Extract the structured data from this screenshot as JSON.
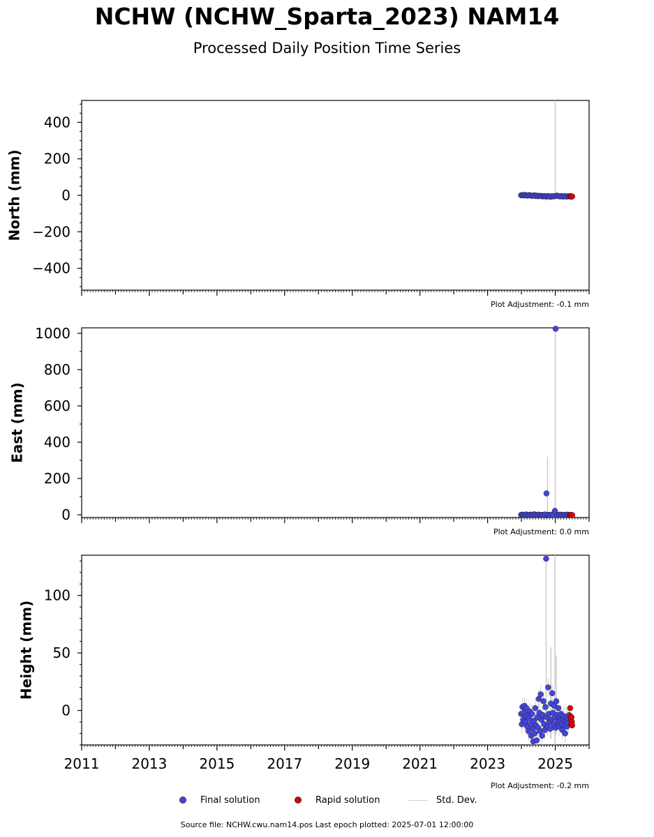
{
  "header": {
    "title": "NCHW (NCHW_Sparta_2023) NAM14",
    "subtitle": "Processed Daily Position Time Series"
  },
  "chart_data": [
    {
      "type": "scatter",
      "ylabel": "North (mm)",
      "xlim": [
        2011,
        2026
      ],
      "ylim": [
        -520,
        520
      ],
      "yticks": [
        -400,
        -200,
        0,
        200,
        400
      ],
      "ytick_labels": [
        "−400",
        "−200",
        "0",
        "200",
        "400"
      ],
      "adjustment": "Plot Adjustment: -0.1 mm",
      "series": [
        {
          "name": "Final solution",
          "color": "#4444dd",
          "points": [
            [
              2023.99,
              0
            ],
            [
              2024.03,
              1
            ],
            [
              2024.07,
              -1
            ],
            [
              2024.1,
              2
            ],
            [
              2024.14,
              0
            ],
            [
              2024.18,
              -2
            ],
            [
              2024.22,
              1
            ],
            [
              2024.26,
              0
            ],
            [
              2024.3,
              -3
            ],
            [
              2024.34,
              -2
            ],
            [
              2024.38,
              0
            ],
            [
              2024.42,
              -4
            ],
            [
              2024.46,
              -2
            ],
            [
              2024.5,
              -5
            ],
            [
              2024.54,
              -3
            ],
            [
              2024.58,
              -4
            ],
            [
              2024.62,
              -6
            ],
            [
              2024.66,
              -4
            ],
            [
              2024.7,
              -5
            ],
            [
              2024.74,
              -7
            ],
            [
              2024.78,
              -4
            ],
            [
              2024.82,
              -6
            ],
            [
              2024.86,
              -8
            ],
            [
              2024.9,
              -5
            ],
            [
              2024.94,
              -6
            ],
            [
              2024.98,
              -5
            ],
            [
              2025.02,
              -3
            ],
            [
              2025.06,
              -2
            ],
            [
              2025.1,
              -5
            ],
            [
              2025.14,
              -6
            ],
            [
              2025.18,
              -4
            ],
            [
              2025.22,
              -7
            ],
            [
              2025.26,
              -5
            ],
            [
              2025.3,
              -6
            ],
            [
              2025.34,
              -7
            ],
            [
              2025.38,
              -5
            ],
            [
              2025.42,
              -6
            ]
          ]
        },
        {
          "name": "Rapid solution",
          "color": "#dd0000",
          "points": [
            [
              2025.44,
              -6
            ],
            [
              2025.46,
              -5
            ],
            [
              2025.48,
              -8
            ],
            [
              2025.5,
              -6
            ]
          ]
        }
      ],
      "error_bars": [
        [
          2025.0,
          520,
          -10
        ],
        [
          2024.7,
          10,
          -30
        ]
      ]
    },
    {
      "type": "scatter",
      "ylabel": "East (mm)",
      "xlim": [
        2011,
        2026
      ],
      "ylim": [
        -15,
        1030
      ],
      "yticks": [
        0,
        200,
        400,
        600,
        800,
        1000
      ],
      "ytick_labels": [
        "0",
        "200",
        "400",
        "600",
        "800",
        "1000"
      ],
      "adjustment": "Plot Adjustment: 0.0 mm",
      "series": [
        {
          "name": "Final solution",
          "color": "#4444dd",
          "points": [
            [
              2023.99,
              0
            ],
            [
              2024.03,
              1
            ],
            [
              2024.07,
              -1
            ],
            [
              2024.1,
              0
            ],
            [
              2024.14,
              2
            ],
            [
              2024.18,
              0
            ],
            [
              2024.22,
              -1
            ],
            [
              2024.26,
              1
            ],
            [
              2024.3,
              0
            ],
            [
              2024.34,
              -2
            ],
            [
              2024.38,
              3
            ],
            [
              2024.42,
              0
            ],
            [
              2024.46,
              -1
            ],
            [
              2024.5,
              1
            ],
            [
              2024.54,
              0
            ],
            [
              2024.58,
              -2
            ],
            [
              2024.62,
              0
            ],
            [
              2024.66,
              -1
            ],
            [
              2024.7,
              2
            ],
            [
              2024.74,
              118
            ],
            [
              2024.78,
              0
            ],
            [
              2024.82,
              -2
            ],
            [
              2024.86,
              0
            ],
            [
              2024.9,
              1
            ],
            [
              2024.94,
              -1
            ],
            [
              2024.99,
              22
            ],
            [
              2025.01,
              1025
            ],
            [
              2025.06,
              0
            ],
            [
              2025.1,
              -1
            ],
            [
              2025.14,
              1
            ],
            [
              2025.18,
              0
            ],
            [
              2025.22,
              -2
            ],
            [
              2025.26,
              0
            ],
            [
              2025.3,
              -1
            ],
            [
              2025.34,
              1
            ],
            [
              2025.38,
              0
            ],
            [
              2025.42,
              -1
            ]
          ]
        },
        {
          "name": "Rapid solution",
          "color": "#dd0000",
          "points": [
            [
              2025.44,
              -1
            ],
            [
              2025.46,
              0
            ],
            [
              2025.48,
              -2
            ],
            [
              2025.5,
              -1
            ]
          ]
        }
      ],
      "error_bars": [
        [
          2025.0,
          1030,
          -15
        ],
        [
          2024.77,
          320,
          -10
        ]
      ]
    },
    {
      "type": "scatter",
      "ylabel": "Height (mm)",
      "xlim": [
        2011,
        2026
      ],
      "ylim": [
        -30,
        135
      ],
      "yticks": [
        0,
        50,
        100
      ],
      "ytick_labels": [
        "0",
        "50",
        "100"
      ],
      "xticks": [
        2011,
        2013,
        2015,
        2017,
        2019,
        2021,
        2023,
        2025
      ],
      "xtick_labels": [
        "2011",
        "2013",
        "2015",
        "2017",
        "2019",
        "2021",
        "2023",
        "2025"
      ],
      "adjustment": "Plot Adjustment: -0.2 mm",
      "series": [
        {
          "name": "Final solution",
          "color": "#4444dd",
          "points": [
            [
              2023.99,
              -3
            ],
            [
              2024.01,
              -12
            ],
            [
              2024.03,
              3
            ],
            [
              2024.05,
              -8
            ],
            [
              2024.07,
              -2
            ],
            [
              2024.09,
              4
            ],
            [
              2024.11,
              -10
            ],
            [
              2024.13,
              -5
            ],
            [
              2024.15,
              2
            ],
            [
              2024.17,
              -14
            ],
            [
              2024.19,
              -4
            ],
            [
              2024.21,
              -18
            ],
            [
              2024.23,
              -7
            ],
            [
              2024.25,
              -1
            ],
            [
              2024.27,
              -12
            ],
            [
              2024.29,
              -22
            ],
            [
              2024.31,
              -3
            ],
            [
              2024.33,
              -16
            ],
            [
              2024.35,
              -27
            ],
            [
              2024.37,
              -9
            ],
            [
              2024.39,
              -20
            ],
            [
              2024.41,
              2
            ],
            [
              2024.43,
              -13
            ],
            [
              2024.45,
              -26
            ],
            [
              2024.47,
              -6
            ],
            [
              2024.49,
              -15
            ],
            [
              2024.51,
              10
            ],
            [
              2024.53,
              -2
            ],
            [
              2024.55,
              -18
            ],
            [
              2024.57,
              14
            ],
            [
              2024.59,
              -8
            ],
            [
              2024.61,
              -22
            ],
            [
              2024.63,
              -4
            ],
            [
              2024.65,
              8
            ],
            [
              2024.67,
              -12
            ],
            [
              2024.69,
              -17
            ],
            [
              2024.71,
              3
            ],
            [
              2024.73,
              132
            ],
            [
              2024.75,
              -6
            ],
            [
              2024.77,
              -14
            ],
            [
              2024.79,
              20
            ],
            [
              2024.81,
              -3
            ],
            [
              2024.83,
              -10
            ],
            [
              2024.85,
              -16
            ],
            [
              2024.87,
              6
            ],
            [
              2024.89,
              -8
            ],
            [
              2024.91,
              15
            ],
            [
              2024.93,
              -2
            ],
            [
              2024.95,
              -12
            ],
            [
              2024.97,
              4
            ],
            [
              2024.99,
              -6
            ],
            [
              2025.01,
              -15
            ],
            [
              2025.03,
              8
            ],
            [
              2025.05,
              -4
            ],
            [
              2025.07,
              -10
            ],
            [
              2025.09,
              2
            ],
            [
              2025.11,
              -14
            ],
            [
              2025.13,
              -6
            ],
            [
              2025.15,
              -9
            ],
            [
              2025.17,
              -3
            ],
            [
              2025.19,
              -12
            ],
            [
              2025.21,
              -17
            ],
            [
              2025.23,
              -8
            ],
            [
              2025.25,
              -5
            ],
            [
              2025.27,
              -13
            ],
            [
              2025.29,
              -20
            ],
            [
              2025.31,
              -10
            ],
            [
              2025.33,
              -6
            ],
            [
              2025.35,
              -14
            ],
            [
              2025.37,
              -8
            ],
            [
              2025.39,
              -11
            ],
            [
              2025.41,
              -4
            ]
          ]
        },
        {
          "name": "Rapid solution",
          "color": "#dd0000",
          "points": [
            [
              2025.44,
              2
            ],
            [
              2025.45,
              -5
            ],
            [
              2025.46,
              -8
            ],
            [
              2025.47,
              -12
            ],
            [
              2025.48,
              -6
            ],
            [
              2025.49,
              -10
            ],
            [
              2025.5,
              -13
            ]
          ]
        }
      ],
      "error_bars": [
        [
          2024.73,
          135,
          -20
        ],
        [
          2024.99,
          135,
          -30
        ],
        [
          2024.87,
          55,
          -25
        ],
        [
          2025.03,
          48,
          -20
        ]
      ]
    }
  ],
  "legend": {
    "final_label": "Final solution",
    "rapid_label": "Rapid solution",
    "stddev_label": "Std. Dev.",
    "final_color": "#4444dd",
    "rapid_color": "#dd0000",
    "stddev_color": "#cccccc"
  },
  "footer": {
    "source": "Source file: NCHW.cwu.nam14.pos  Last epoch plotted: 2025-07-01 12:00:00"
  }
}
